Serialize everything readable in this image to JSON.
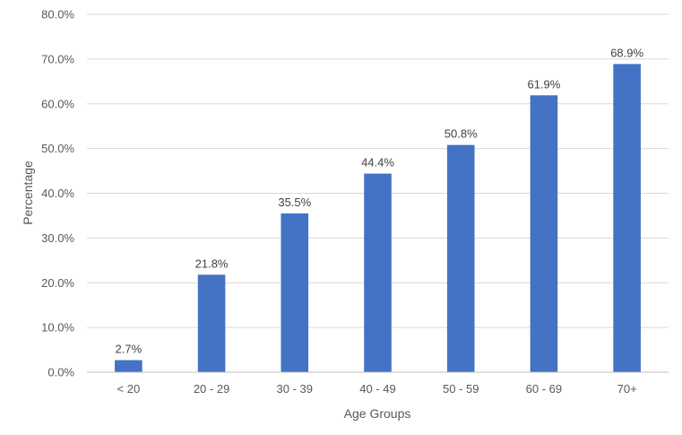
{
  "chart_data": {
    "type": "bar",
    "title": "",
    "xlabel": "Age Groups",
    "ylabel": "Percentage",
    "categories": [
      "< 20",
      "20 - 29",
      "30 - 39",
      "40 - 49",
      "50 - 59",
      "60 - 69",
      "70+"
    ],
    "values": [
      2.7,
      21.8,
      35.5,
      44.4,
      50.8,
      61.9,
      68.9
    ],
    "data_labels": [
      "2.7%",
      "21.8%",
      "35.5%",
      "44.4%",
      "50.8%",
      "61.9%",
      "68.9%"
    ],
    "ylim": [
      0,
      80
    ],
    "yticks": [
      0,
      10,
      20,
      30,
      40,
      50,
      60,
      70,
      80
    ],
    "ytick_labels": [
      "0.0%",
      "10.0%",
      "20.0%",
      "30.0%",
      "40.0%",
      "50.0%",
      "60.0%",
      "70.0%",
      "80.0%"
    ],
    "grid": true,
    "legend": "none",
    "colors": {
      "bar": "#4472c4",
      "grid": "#d9d9d9",
      "axis": "#bfbfbf",
      "text": "#595959"
    }
  }
}
